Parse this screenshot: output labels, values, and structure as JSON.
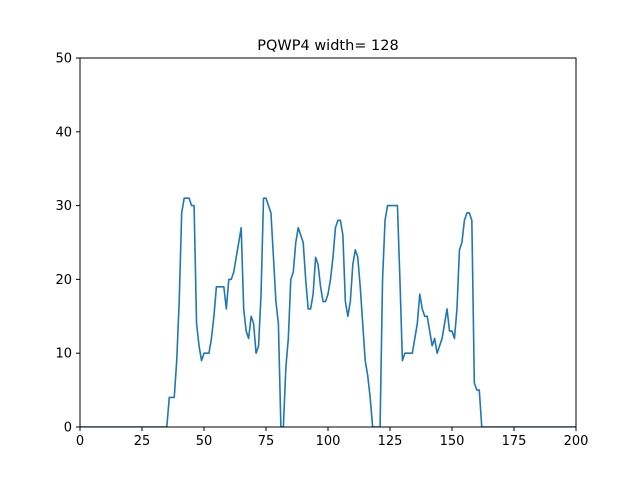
{
  "chart_data": {
    "type": "line",
    "title": "PQWP4 width= 128",
    "xlabel": "",
    "ylabel": "",
    "xlim": [
      0,
      200
    ],
    "ylim": [
      0,
      50
    ],
    "xticks": [
      0,
      25,
      50,
      75,
      100,
      125,
      150,
      175,
      200
    ],
    "yticks": [
      0,
      10,
      20,
      30,
      40,
      50
    ],
    "grid": false,
    "series": [
      {
        "color": "#1f77b4",
        "x": [
          0,
          35,
          36,
          38,
          39,
          40,
          41,
          42,
          43,
          44,
          45,
          46,
          47,
          48,
          49,
          50,
          51,
          52,
          53,
          54,
          55,
          56,
          57,
          58,
          59,
          60,
          61,
          62,
          63,
          64,
          65,
          66,
          67,
          68,
          69,
          70,
          71,
          72,
          73,
          74,
          75,
          76,
          77,
          78,
          79,
          80,
          81,
          82,
          83,
          84,
          85,
          86,
          87,
          88,
          89,
          90,
          91,
          92,
          93,
          94,
          95,
          96,
          97,
          98,
          99,
          100,
          101,
          102,
          103,
          104,
          105,
          106,
          107,
          108,
          109,
          110,
          111,
          112,
          113,
          114,
          115,
          116,
          117,
          118,
          119,
          120,
          121,
          122,
          123,
          124,
          125,
          126,
          127,
          128,
          129,
          130,
          131,
          132,
          133,
          134,
          135,
          136,
          137,
          138,
          139,
          140,
          141,
          142,
          143,
          144,
          145,
          146,
          147,
          148,
          149,
          150,
          151,
          152,
          153,
          154,
          155,
          156,
          157,
          158,
          159,
          160,
          161,
          162,
          163,
          164,
          200
        ],
        "y": [
          0,
          0,
          4,
          4,
          9,
          17,
          29,
          31,
          31,
          31,
          30,
          30,
          14,
          11,
          9,
          10,
          10,
          10,
          12,
          15,
          19,
          19,
          19,
          19,
          16,
          20,
          20,
          21,
          23,
          25,
          27,
          16,
          13,
          12,
          15,
          14,
          10,
          11,
          18,
          31,
          31,
          30,
          29,
          23,
          17,
          14,
          0,
          0,
          8,
          12,
          20,
          21,
          25,
          27,
          26,
          25,
          20,
          16,
          16,
          18,
          23,
          22,
          19,
          17,
          17,
          18,
          20,
          23,
          27,
          28,
          28,
          26,
          17,
          15,
          17,
          22,
          24,
          23,
          19,
          14,
          9,
          7,
          4,
          0,
          0,
          0,
          0,
          20,
          28,
          30,
          30,
          30,
          30,
          30,
          20,
          9,
          10,
          10,
          10,
          10,
          12,
          14,
          18,
          16,
          15,
          15,
          13,
          11,
          12,
          10,
          11,
          12,
          14,
          16,
          13,
          13,
          12,
          16,
          24,
          25,
          28,
          29,
          29,
          28,
          6,
          5,
          5,
          0,
          0,
          0,
          0
        ]
      }
    ]
  }
}
